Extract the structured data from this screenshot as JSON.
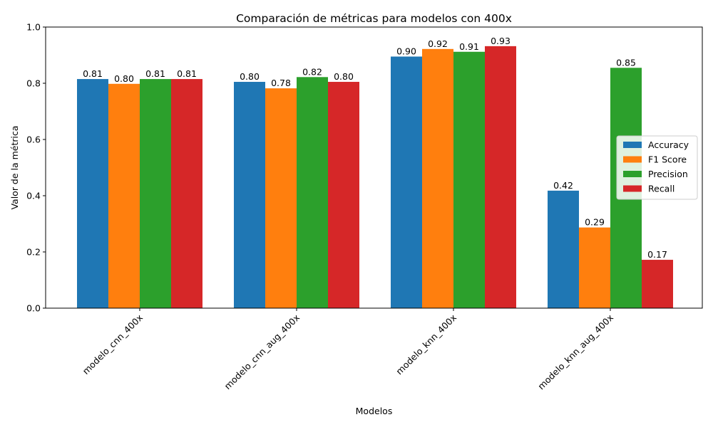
{
  "chart_data": {
    "type": "bar",
    "title": "Comparación de métricas para modelos con 400x",
    "xlabel": "Modelos",
    "ylabel": "Valor de la métrica",
    "ylim": [
      0,
      1.0
    ],
    "yticks": [
      "0.0",
      "0.2",
      "0.4",
      "0.6",
      "0.8",
      "1.0"
    ],
    "categories": [
      "modelo_cnn_400x",
      "modelo_cnn_aug_400x",
      "modelo_knn_400x",
      "modelo_knn_aug_400x"
    ],
    "series": [
      {
        "name": "Accuracy",
        "color": "#1f77b4",
        "values": [
          0.815,
          0.805,
          0.895,
          0.418
        ],
        "labels": [
          "0.81",
          "0.80",
          "0.90",
          "0.42"
        ]
      },
      {
        "name": "F1 Score",
        "color": "#ff7f0e",
        "values": [
          0.798,
          0.782,
          0.922,
          0.287
        ],
        "labels": [
          "0.80",
          "0.78",
          "0.92",
          "0.29"
        ]
      },
      {
        "name": "Precision",
        "color": "#2ca02c",
        "values": [
          0.815,
          0.822,
          0.912,
          0.855
        ],
        "labels": [
          "0.81",
          "0.82",
          "0.91",
          "0.85"
        ]
      },
      {
        "name": "Recall",
        "color": "#d62728",
        "values": [
          0.815,
          0.805,
          0.932,
          0.172
        ],
        "labels": [
          "0.81",
          "0.80",
          "0.93",
          "0.17"
        ]
      }
    ],
    "legend": "center-right",
    "grid": false,
    "xtick_rotation_deg": 45
  }
}
